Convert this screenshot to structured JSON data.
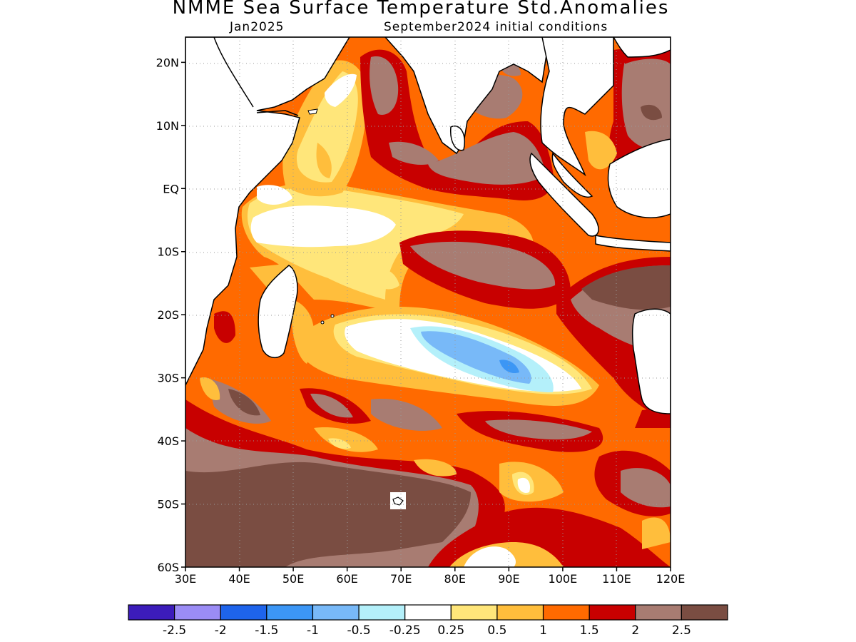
{
  "header": {
    "title": "NMME Sea Surface Temperature Std.Anomalies",
    "target_month": "Jan2025",
    "initial_conditions": "September2024 initial conditions"
  },
  "map": {
    "projection": "lat-lon",
    "lon_range": [
      30,
      120
    ],
    "lat_range": [
      -60,
      24
    ],
    "lat_ticks": [
      {
        "value": 20,
        "label": "20N"
      },
      {
        "value": 10,
        "label": "10N"
      },
      {
        "value": 0,
        "label": "EQ"
      },
      {
        "value": -10,
        "label": "10S"
      },
      {
        "value": -20,
        "label": "20S"
      },
      {
        "value": -30,
        "label": "30S"
      },
      {
        "value": -40,
        "label": "40S"
      },
      {
        "value": -50,
        "label": "50S"
      },
      {
        "value": -60,
        "label": "60S"
      }
    ],
    "lon_ticks": [
      {
        "value": 30,
        "label": "30E"
      },
      {
        "value": 40,
        "label": "40E"
      },
      {
        "value": 50,
        "label": "50E"
      },
      {
        "value": 60,
        "label": "60E"
      },
      {
        "value": 70,
        "label": "70E"
      },
      {
        "value": 80,
        "label": "80E"
      },
      {
        "value": 90,
        "label": "90E"
      },
      {
        "value": 100,
        "label": "100E"
      },
      {
        "value": 110,
        "label": "110E"
      },
      {
        "value": 120,
        "label": "120E"
      }
    ],
    "grid": true
  },
  "colorbar": {
    "colors": [
      "#3c1cba",
      "#9b8cf5",
      "#1e64eb",
      "#3c96f5",
      "#78b9f8",
      "#b4f0fa",
      "#ffffff",
      "#ffe67a",
      "#ffbe3c",
      "#ff6a00",
      "#c80000",
      "#a87c72",
      "#7a4d42"
    ],
    "labels": [
      "-2.5",
      "-2",
      "-1.5",
      "-1",
      "-0.5",
      "-0.25",
      "0.25",
      "0.5",
      "1",
      "1.5",
      "2",
      "2.5"
    ]
  }
}
